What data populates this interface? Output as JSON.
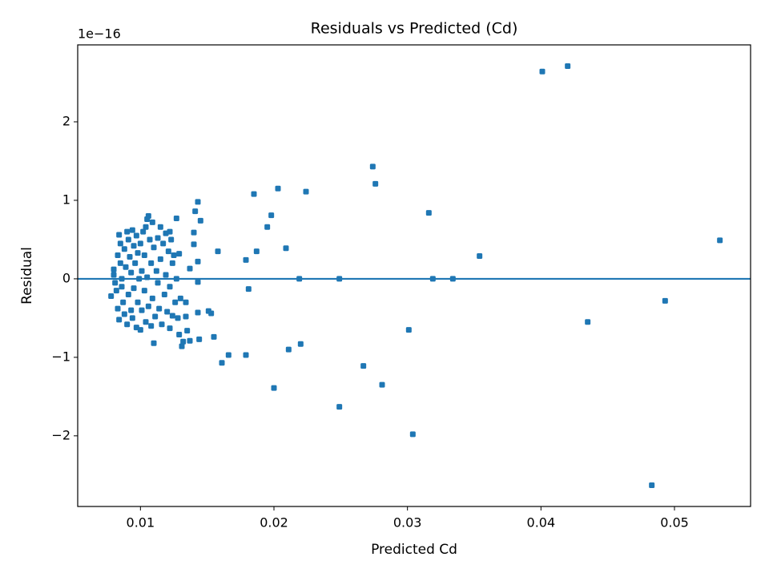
{
  "chart_data": {
    "type": "scatter",
    "title": "Residuals vs Predicted (Cd)",
    "x_label": "Predicted Cd",
    "y_label": "Residual",
    "y_offset_label": "1e−16",
    "color": "#1f77b4",
    "hline": 0,
    "xlim": [
      0.0053,
      0.0557
    ],
    "ylim": [
      -2.9,
      2.98
    ],
    "xticks": [
      0.01,
      0.02,
      0.03,
      0.04,
      0.05
    ],
    "yticks": [
      {
        "value": -2,
        "label": "−2"
      },
      {
        "value": -1,
        "label": "−1"
      },
      0,
      1,
      2
    ],
    "x": [
      0.0401,
      0.042,
      0.0274,
      0.0276,
      0.0203,
      0.0224,
      0.0185,
      0.0316,
      0.0198,
      0.0195,
      0.0209,
      0.0187,
      0.0179,
      0.0354,
      0.0534,
      0.0219,
      0.0249,
      0.0319,
      0.0334,
      0.0181,
      0.0493,
      0.0435,
      0.0301,
      0.022,
      0.0211,
      0.0179,
      0.0166,
      0.0161,
      0.0267,
      0.0281,
      0.02,
      0.0249,
      0.0304,
      0.0483,
      0.0143,
      0.0141,
      0.0145,
      0.0127,
      0.014,
      0.014,
      0.0158,
      0.0143,
      0.0137,
      0.0143,
      0.0134,
      0.0143,
      0.0151,
      0.0153,
      0.0135,
      0.0144,
      0.0137,
      0.0131,
      0.0155,
      0.011,
      0.0129,
      0.0122,
      0.0078,
      0.008,
      0.008,
      0.0081,
      0.0082,
      0.0083,
      0.0083,
      0.0084,
      0.0084,
      0.0085,
      0.0085,
      0.0086,
      0.0086,
      0.0087,
      0.0088,
      0.0088,
      0.0089,
      0.009,
      0.009,
      0.0091,
      0.0091,
      0.0092,
      0.0093,
      0.0093,
      0.0094,
      0.0094,
      0.0095,
      0.0095,
      0.0096,
      0.0097,
      0.0097,
      0.0098,
      0.0098,
      0.0099,
      0.01,
      0.01,
      0.0101,
      0.0101,
      0.0102,
      0.0103,
      0.0103,
      0.0104,
      0.0104,
      0.0105,
      0.0105,
      0.0106,
      0.0106,
      0.0107,
      0.0108,
      0.0108,
      0.0109,
      0.0109,
      0.011,
      0.0111,
      0.0112,
      0.0113,
      0.0113,
      0.0114,
      0.0115,
      0.0115,
      0.0116,
      0.0117,
      0.0118,
      0.0119,
      0.0119,
      0.012,
      0.0121,
      0.0122,
      0.0122,
      0.0123,
      0.0124,
      0.0124,
      0.0125,
      0.0126,
      0.0127,
      0.0128,
      0.0129,
      0.013,
      0.0132,
      0.0134
    ],
    "values": [
      2.64,
      2.71,
      1.43,
      1.21,
      1.15,
      1.11,
      1.08,
      0.84,
      0.81,
      0.66,
      0.39,
      0.35,
      0.24,
      0.29,
      0.49,
      0,
      0,
      0,
      0,
      -0.13,
      -0.28,
      -0.55,
      -0.65,
      -0.83,
      -0.9,
      -0.97,
      -0.97,
      -1.07,
      -1.11,
      -1.35,
      -1.39,
      -1.63,
      -1.98,
      -2.63,
      0.98,
      0.86,
      0.74,
      0.77,
      0.59,
      0.44,
      0.35,
      0.22,
      0.13,
      -0.04,
      -0.3,
      -0.43,
      -0.41,
      -0.44,
      -0.66,
      -0.77,
      -0.79,
      -0.86,
      -0.74,
      -0.82,
      -0.71,
      -0.63,
      -0.22,
      0.12,
      0.05,
      -0.05,
      -0.15,
      0.3,
      -0.38,
      0.56,
      -0.52,
      0.45,
      0.2,
      -0.1,
      0.0,
      -0.3,
      0.38,
      -0.45,
      0.15,
      0.6,
      -0.58,
      0.5,
      -0.2,
      0.28,
      -0.4,
      0.08,
      0.62,
      -0.5,
      0.42,
      -0.12,
      0.2,
      -0.62,
      0.55,
      -0.3,
      0.33,
      0.0,
      -0.65,
      0.45,
      -0.4,
      0.1,
      0.6,
      -0.15,
      0.3,
      0.66,
      -0.55,
      0.76,
      0.02,
      0.8,
      -0.35,
      0.5,
      -0.6,
      0.2,
      0.72,
      -0.25,
      0.4,
      -0.48,
      0.1,
      0.52,
      -0.05,
      -0.38,
      0.66,
      0.25,
      -0.58,
      0.45,
      -0.2,
      0.58,
      0.05,
      -0.42,
      0.35,
      0.6,
      -0.1,
      0.5,
      0.2,
      -0.47,
      0.3,
      -0.3,
      0.0,
      -0.5,
      0.32,
      -0.25,
      -0.8,
      -0.48
    ]
  }
}
